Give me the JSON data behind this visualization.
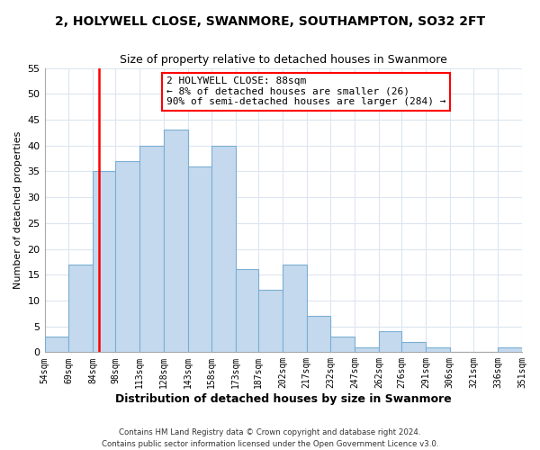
{
  "title": "2, HOLYWELL CLOSE, SWANMORE, SOUTHAMPTON, SO32 2FT",
  "subtitle": "Size of property relative to detached houses in Swanmore",
  "xlabel": "Distribution of detached houses by size in Swanmore",
  "ylabel": "Number of detached properties",
  "bin_edges": [
    54,
    69,
    84,
    98,
    113,
    128,
    143,
    158,
    173,
    187,
    202,
    217,
    232,
    247,
    262,
    276,
    291,
    306,
    321,
    336,
    351
  ],
  "bin_labels": [
    "54sqm",
    "69sqm",
    "84sqm",
    "98sqm",
    "113sqm",
    "128sqm",
    "143sqm",
    "158sqm",
    "173sqm",
    "187sqm",
    "202sqm",
    "217sqm",
    "232sqm",
    "247sqm",
    "262sqm",
    "276sqm",
    "291sqm",
    "306sqm",
    "321sqm",
    "336sqm",
    "351sqm"
  ],
  "counts": [
    3,
    17,
    35,
    37,
    40,
    43,
    36,
    40,
    16,
    12,
    17,
    7,
    3,
    1,
    4,
    2,
    1,
    0,
    0,
    1
  ],
  "bar_color": "#c5d9ee",
  "bar_edgecolor": "#7aafd4",
  "vline_x": 88,
  "vline_color": "red",
  "annotation_title": "2 HOLYWELL CLOSE: 88sqm",
  "annotation_line1": "← 8% of detached houses are smaller (26)",
  "annotation_line2": "90% of semi-detached houses are larger (284) →",
  "annotation_box_edgecolor": "red",
  "ylim": [
    0,
    55
  ],
  "yticks": [
    0,
    5,
    10,
    15,
    20,
    25,
    30,
    35,
    40,
    45,
    50,
    55
  ],
  "background_color": "#ffffff",
  "plot_background": "#ffffff",
  "grid_color": "#dce6f0",
  "footer_line1": "Contains HM Land Registry data © Crown copyright and database right 2024.",
  "footer_line2": "Contains public sector information licensed under the Open Government Licence v3.0."
}
